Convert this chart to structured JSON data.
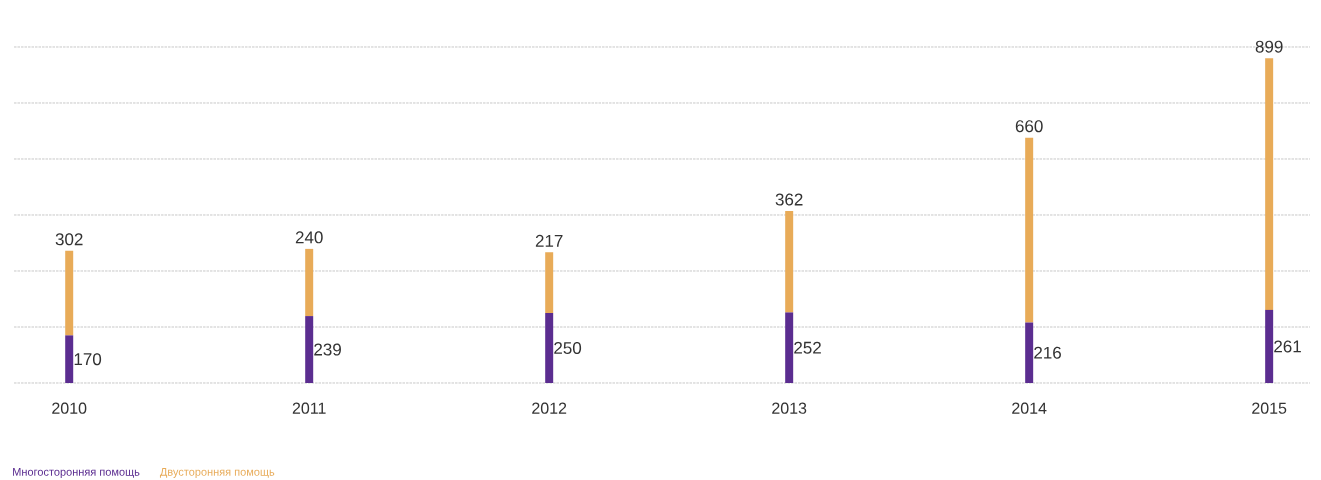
{
  "chart_data": {
    "type": "bar",
    "stacked": true,
    "categories": [
      "2010",
      "2011",
      "2012",
      "2013",
      "2014",
      "2015"
    ],
    "series": [
      {
        "name": "Многосторонняя помощь",
        "color": "#5b2d90",
        "values": [
          170,
          239,
          250,
          252,
          216,
          261
        ]
      },
      {
        "name": "Двусторонняя помощь",
        "color": "#e8ab58",
        "values": [
          302,
          240,
          217,
          362,
          660,
          899
        ]
      }
    ],
    "ylim": [
      0,
      1200
    ],
    "yticks": [
      {
        "value": 0,
        "label": null
      },
      {
        "value": 200,
        "label": null
      },
      {
        "value": 400,
        "label": null
      },
      {
        "value": 600,
        "label": null
      },
      {
        "value": 800,
        "label": null
      },
      {
        "value": 1000,
        "label": null
      },
      {
        "value": 1200,
        "label": null
      }
    ],
    "grid": "y",
    "tick_labels": "x",
    "data_labels": true,
    "legend": "bottom left"
  }
}
